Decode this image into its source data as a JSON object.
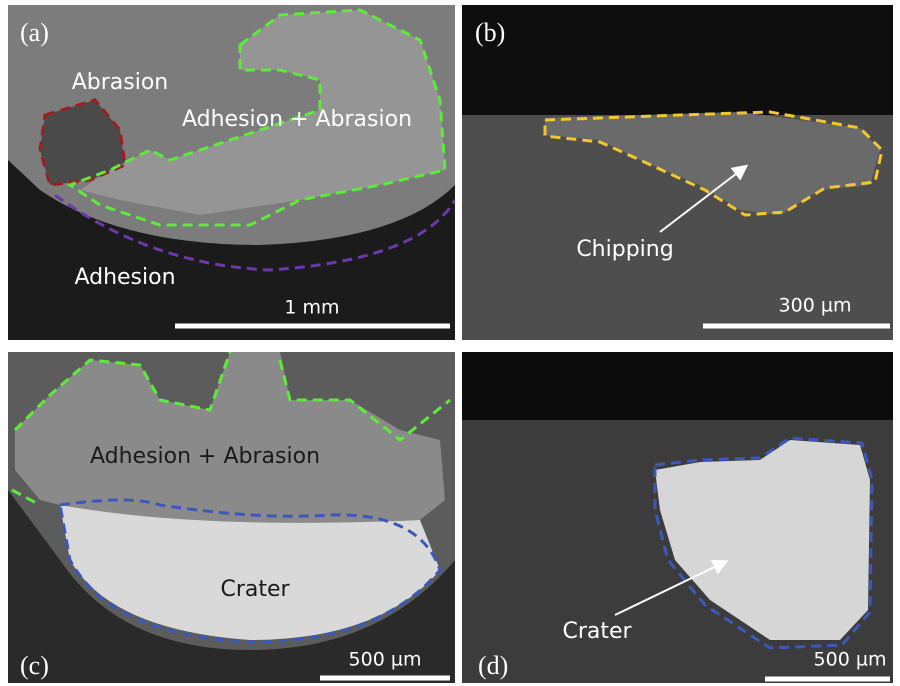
{
  "panels": [
    {
      "label": "(a)",
      "annotations": [
        "Abrasion",
        "Adhesion + Abrasion",
        "Adhesion"
      ],
      "scale_bar": "1 mm"
    },
    {
      "label": "(b)",
      "annotations": [
        "Chipping"
      ],
      "scale_bar": "300 µm"
    },
    {
      "label": "(c)",
      "annotations": [
        "Adhesion + Abrasion",
        "Crater"
      ],
      "scale_bar": "500 µm"
    },
    {
      "label": "(d)",
      "annotations": [
        "Crater"
      ],
      "scale_bar": "500 µm"
    }
  ]
}
